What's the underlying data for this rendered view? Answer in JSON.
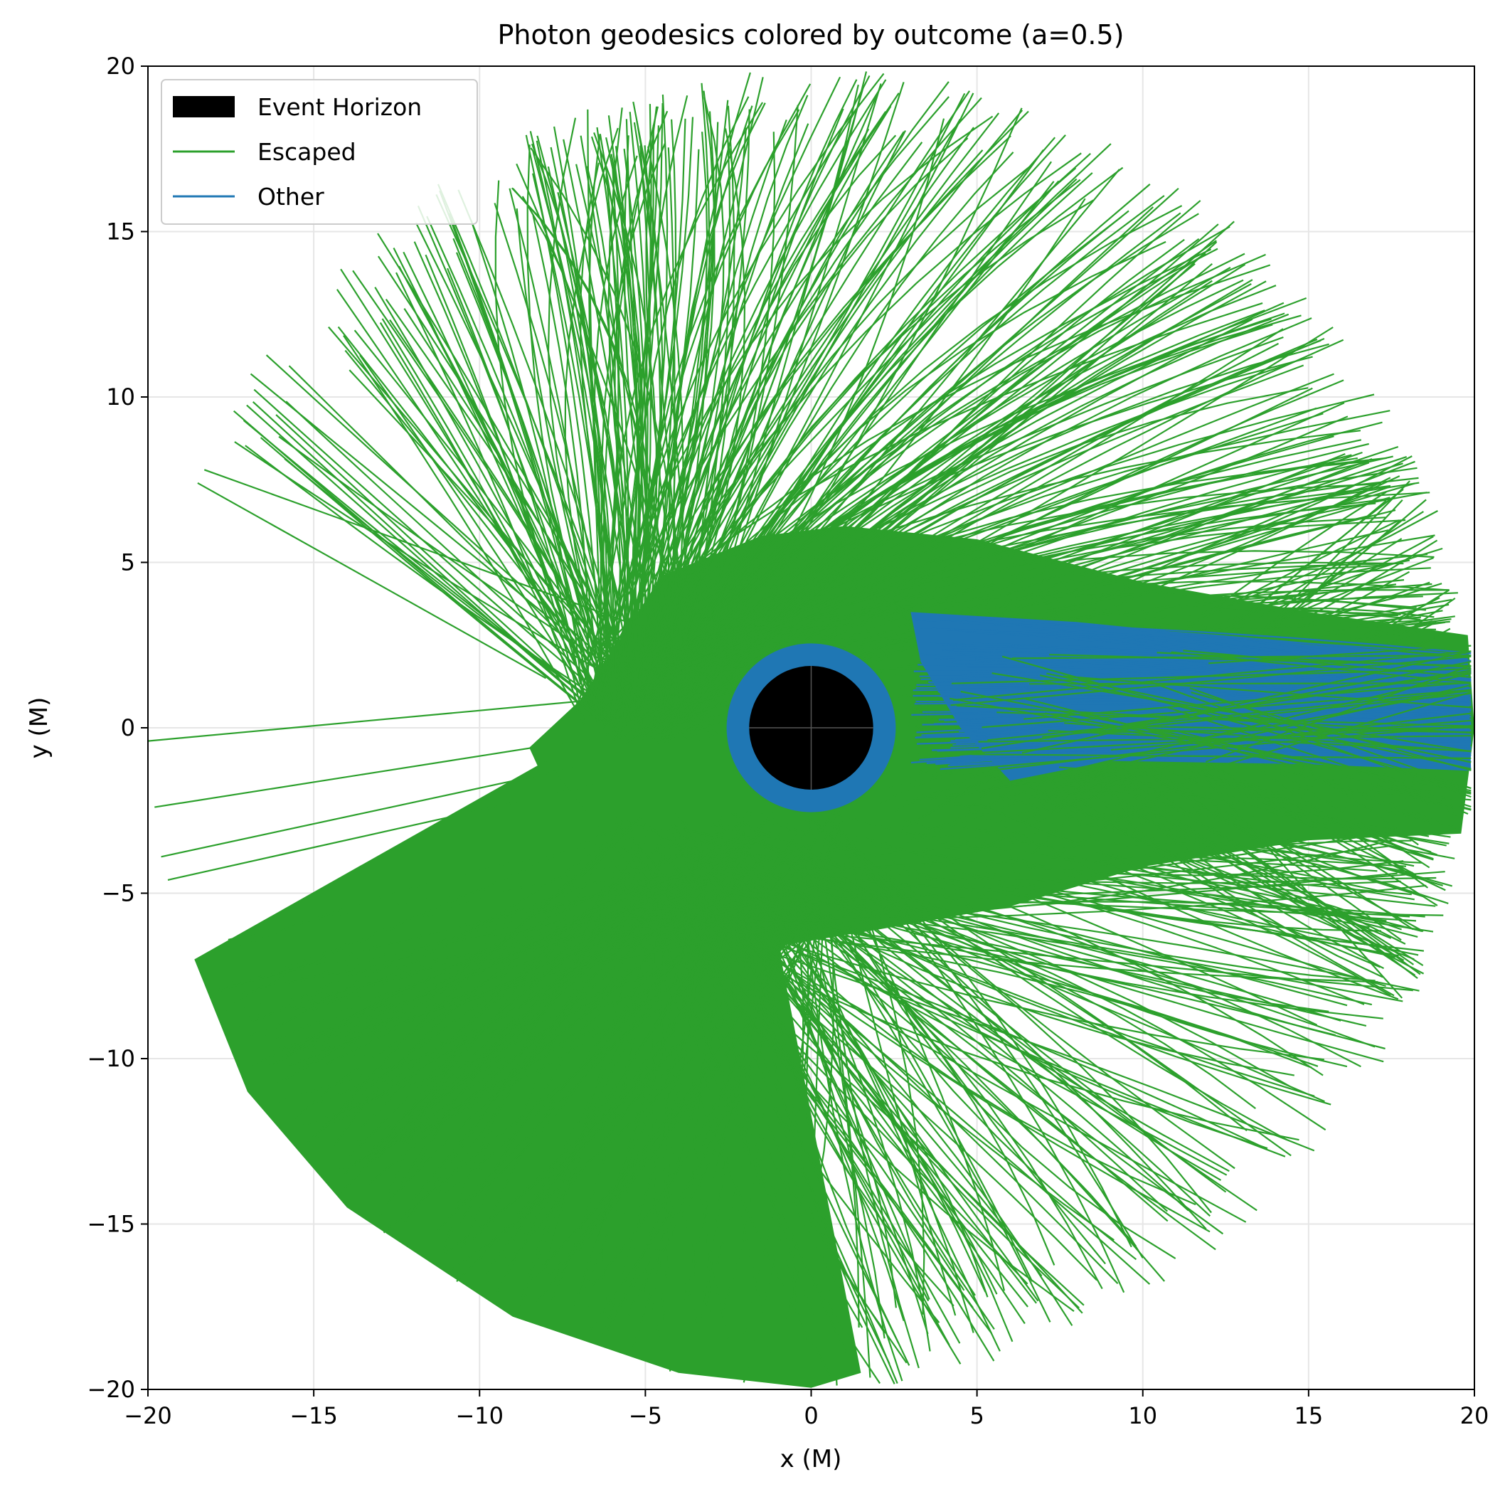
{
  "chart_data": {
    "type": "line",
    "title": "Photon geodesics colored by outcome (a=0.5)",
    "xlabel": "x (M)",
    "ylabel": "y (M)",
    "xlim": [
      -20,
      20
    ],
    "ylim": [
      -20,
      20
    ],
    "xticks": [
      "−20",
      "−15",
      "−10",
      "−5",
      "0",
      "5",
      "10",
      "15",
      "20"
    ],
    "yticks": [
      "−20",
      "−15",
      "−10",
      "−5",
      "0",
      "5",
      "10",
      "15",
      "20"
    ],
    "xtick_values": [
      -20,
      -15,
      -10,
      -5,
      0,
      5,
      10,
      15,
      20
    ],
    "ytick_values": [
      -20,
      -15,
      -10,
      -5,
      0,
      5,
      10,
      15,
      20
    ],
    "grid": true,
    "legend_position": "top-left",
    "legend": [
      {
        "label": "Event Horizon",
        "kind": "patch",
        "color": "#000000"
      },
      {
        "label": "Escaped",
        "kind": "line",
        "color": "#2ca02c"
      },
      {
        "label": "Other",
        "kind": "line",
        "color": "#1f77b4"
      }
    ],
    "event_horizon": {
      "center": [
        0,
        0
      ],
      "radius": 1.87
    },
    "photon_ring": {
      "center": [
        0,
        0
      ],
      "radius": 2.55,
      "color": "#1f77b4"
    },
    "escape_radius": 20,
    "series": [
      {
        "name": "Escaped",
        "color": "#2ca02c"
      },
      {
        "name": "Other",
        "color": "#1f77b4"
      }
    ],
    "colors": {
      "escaped": "#2ca02c",
      "other": "#1f77b4",
      "horizon": "#000000",
      "grid": "#e6e6e6"
    }
  }
}
